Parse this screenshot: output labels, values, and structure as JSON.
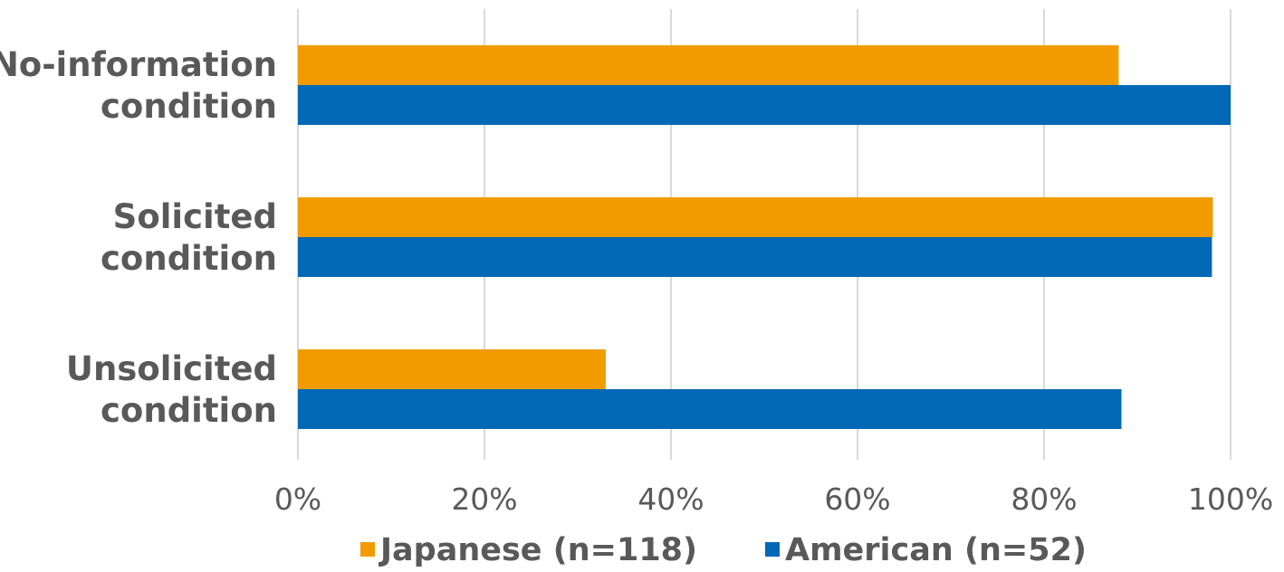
{
  "chart_data": {
    "type": "bar",
    "orientation": "horizontal",
    "title": "",
    "xlabel": "",
    "ylabel": "",
    "categories": [
      [
        "No-information",
        "condition"
      ],
      [
        "Solicited",
        "condition"
      ],
      [
        "Unsolicited",
        "condition"
      ]
    ],
    "series": [
      {
        "name": "Japanese (n=118)",
        "color": "#f29b00",
        "values": [
          88,
          98.1,
          33
        ]
      },
      {
        "name": "American (n=52)",
        "color": "#0068b7",
        "values": [
          100,
          98,
          88.3
        ]
      }
    ],
    "xlim": [
      0,
      100
    ],
    "ticks": [
      "0%",
      "20%",
      "40%",
      "60%",
      "80%",
      "100%"
    ],
    "tick_values": [
      0,
      20,
      40,
      60,
      80,
      100
    ],
    "grid": true,
    "legend_position": "bottom"
  }
}
